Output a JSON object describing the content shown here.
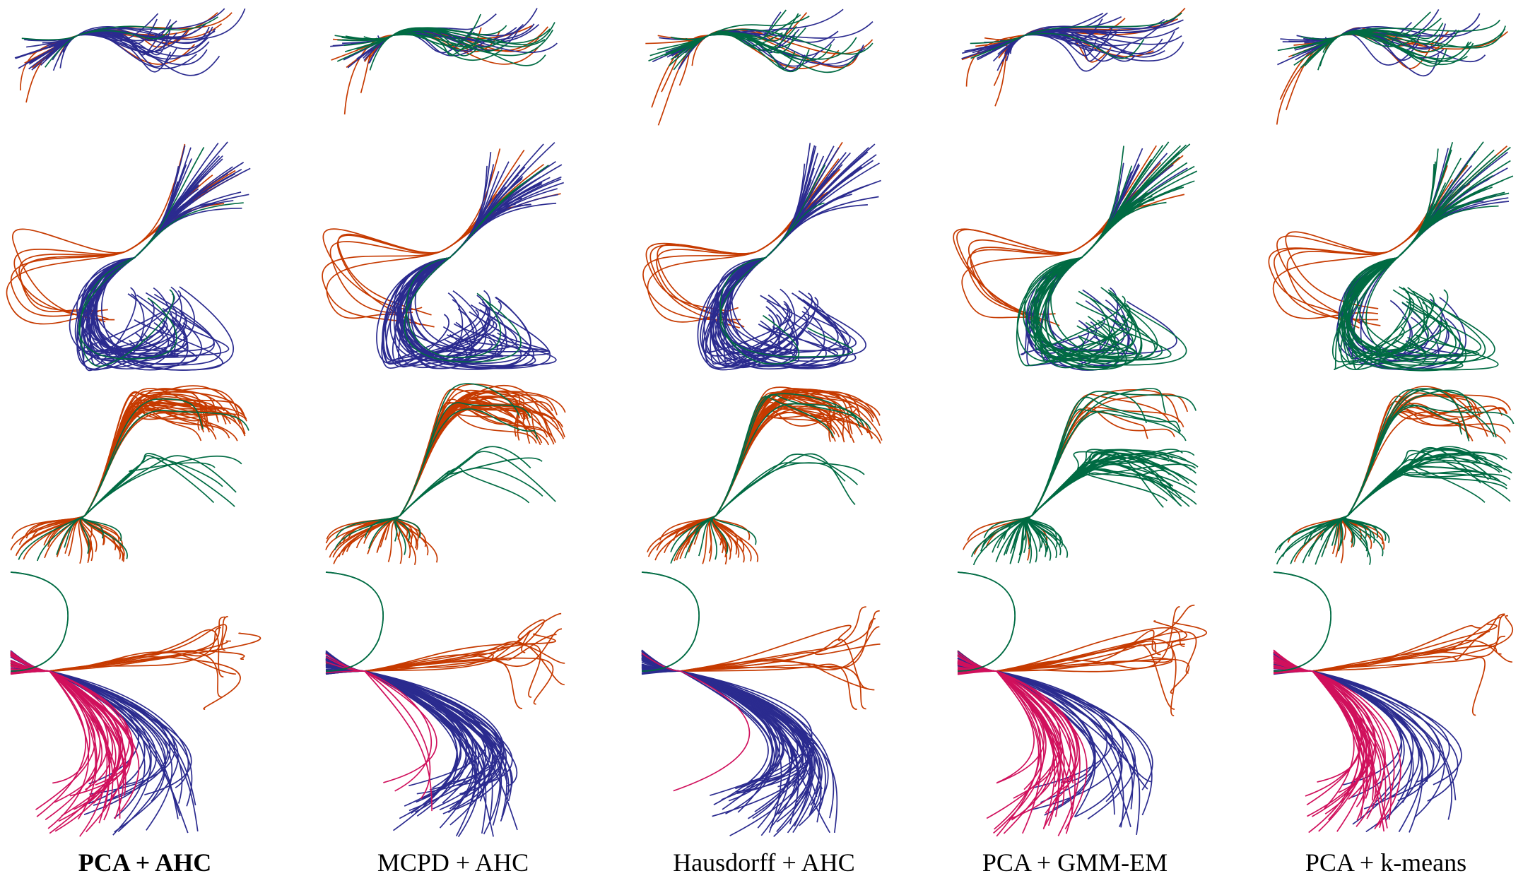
{
  "figure": {
    "columns": [
      {
        "method": "PCA + AHC",
        "bold": true,
        "rows": [
          [
            [
              "orange",
              8
            ],
            [
              "blue",
              24
            ],
            [
              "green",
              2
            ]
          ],
          [
            [
              "orange",
              6
            ],
            [
              "blue",
              34
            ],
            [
              "green",
              2
            ]
          ],
          [
            [
              "orange",
              34
            ],
            [
              "green",
              8
            ]
          ],
          [
            [
              "orange",
              11
            ],
            [
              "blue",
              22
            ],
            [
              "magenta",
              30
            ],
            [
              "green",
              2
            ]
          ]
        ]
      },
      {
        "method": "MCPD + AHC",
        "bold": false,
        "rows": [
          [
            [
              "orange",
              8
            ],
            [
              "blue",
              12
            ],
            [
              "green",
              14
            ]
          ],
          [
            [
              "orange",
              6
            ],
            [
              "blue",
              34
            ],
            [
              "green",
              2
            ]
          ],
          [
            [
              "orange",
              34
            ],
            [
              "green",
              8
            ]
          ],
          [
            [
              "orange",
              11
            ],
            [
              "blue",
              48
            ],
            [
              "magenta",
              4
            ],
            [
              "green",
              2
            ]
          ]
        ]
      },
      {
        "method": "Hausdorff + AHC",
        "bold": false,
        "rows": [
          [
            [
              "orange",
              8
            ],
            [
              "blue",
              12
            ],
            [
              "green",
              14
            ]
          ],
          [
            [
              "orange",
              6
            ],
            [
              "blue",
              34
            ],
            [
              "green",
              2
            ]
          ],
          [
            [
              "orange",
              34
            ],
            [
              "green",
              8
            ]
          ],
          [
            [
              "orange",
              10
            ],
            [
              "blue",
              52
            ],
            [
              "magenta",
              1
            ],
            [
              "green",
              2
            ]
          ]
        ]
      },
      {
        "method": "PCA + GMM-EM",
        "bold": false,
        "rows": [
          [
            [
              "orange",
              8
            ],
            [
              "blue",
              24
            ],
            [
              "green",
              2
            ]
          ],
          [
            [
              "orange",
              6
            ],
            [
              "blue",
              12
            ],
            [
              "green",
              24
            ]
          ],
          [
            [
              "orange",
              6
            ],
            [
              "green",
              36
            ]
          ],
          [
            [
              "orange",
              14
            ],
            [
              "blue",
              20
            ],
            [
              "magenta",
              28
            ],
            [
              "green",
              2
            ]
          ]
        ]
      },
      {
        "method": "PCA + k-means",
        "bold": false,
        "rows": [
          [
            [
              "orange",
              8
            ],
            [
              "blue",
              12
            ],
            [
              "green",
              14
            ]
          ],
          [
            [
              "orange",
              6
            ],
            [
              "blue",
              12
            ],
            [
              "green",
              24
            ]
          ],
          [
            [
              "orange",
              14
            ],
            [
              "green",
              28
            ]
          ],
          [
            [
              "orange",
              11
            ],
            [
              "blue",
              20
            ],
            [
              "magenta",
              32
            ],
            [
              "green",
              2
            ]
          ]
        ]
      }
    ]
  },
  "colors": {
    "orange": "#c63a00",
    "blue": "#2b2b8f",
    "green": "#006b43",
    "magenta": "#d0105c"
  }
}
